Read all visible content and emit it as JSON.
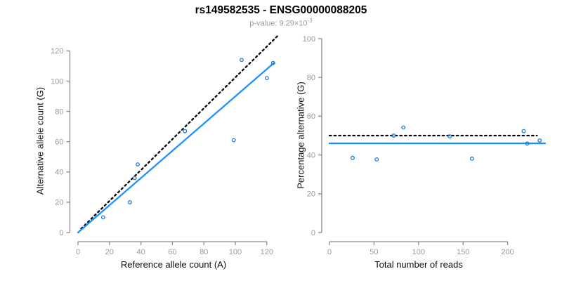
{
  "header": {
    "title": "rs149582535 - ENSG00000088205",
    "p_value_label": "p-value: 9.29×10",
    "p_value_exponent": "-3"
  },
  "colors": {
    "accent_blue": "#1E90FF",
    "point_blue": "#1E7CD6",
    "dotted_black": "#000000",
    "axis_gray": "#8a8a8a",
    "tick_label_gray": "#9a9a9a",
    "title_color": "#000000",
    "subtitle_gray": "#9a9a9a"
  },
  "chart_data": [
    {
      "type": "scatter",
      "panel": "left",
      "xlabel": "Reference allele count (A)",
      "ylabel": "Alternative allele count (G)",
      "xticks": [
        0,
        20,
        40,
        60,
        80,
        100,
        120
      ],
      "yticks": [
        0,
        20,
        40,
        60,
        80,
        100,
        120
      ],
      "xlim": [
        -5,
        130
      ],
      "ylim": [
        -5,
        130
      ],
      "grid": false,
      "points": [
        [
          16,
          10
        ],
        [
          33,
          20
        ],
        [
          36,
          36
        ],
        [
          38,
          45
        ],
        [
          68,
          67
        ],
        [
          99,
          61
        ],
        [
          104,
          114
        ],
        [
          120,
          102
        ],
        [
          124,
          112
        ]
      ],
      "lines": [
        {
          "name": "identity-dotted-line",
          "x1": 2,
          "y1": 2.5,
          "x2": 127,
          "y2": 130,
          "color": "#000000",
          "dash": true
        },
        {
          "name": "regression-line",
          "x1": 0,
          "y1": 0,
          "x2": 124.5,
          "y2": 112,
          "color": "#1E90FF",
          "dash": false
        }
      ]
    },
    {
      "type": "scatter",
      "panel": "right",
      "xlabel": "Total number of reads",
      "ylabel": "Percentage alternative (G)",
      "xticks": [
        0,
        50,
        100,
        150,
        200
      ],
      "yticks": [
        0,
        20,
        40,
        60,
        80,
        100
      ],
      "xlim": [
        0,
        245
      ],
      "ylim": [
        0,
        100
      ],
      "grid": false,
      "points": [
        [
          26,
          38.5
        ],
        [
          53,
          37.7
        ],
        [
          72,
          50.0
        ],
        [
          83,
          54.2
        ],
        [
          135,
          49.6
        ],
        [
          160,
          38.1
        ],
        [
          218,
          52.3
        ],
        [
          222,
          45.9
        ],
        [
          236,
          47.5
        ]
      ],
      "lines": [
        {
          "name": "fifty-percent-dotted-line",
          "x1": 0,
          "y1": 50,
          "x2": 233,
          "y2": 50,
          "color": "#000000",
          "dash": true
        },
        {
          "name": "fit-line",
          "x1": 0,
          "y1": 46,
          "x2": 242,
          "y2": 46,
          "color": "#1E90FF",
          "dash": false
        }
      ]
    }
  ]
}
